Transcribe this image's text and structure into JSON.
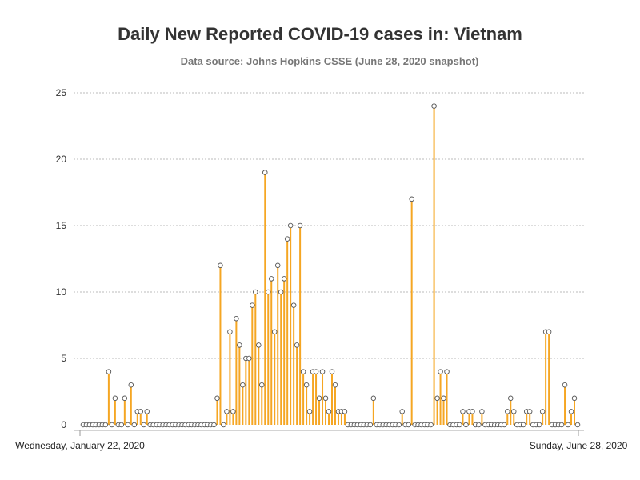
{
  "chart_data": {
    "type": "bar",
    "title": "Daily New Reported COVID-19 cases in: Vietnam",
    "subtitle": "Data source: Johns Hopkins CSSE (June 28, 2020 snapshot)",
    "xlabel": "",
    "ylabel": "",
    "x_start_label": "Wednesday, January 22, 2020",
    "x_end_label": "Sunday, June 28, 2020",
    "x_range": [
      "2020-01-22",
      "2020-06-28"
    ],
    "ylim": [
      0,
      25
    ],
    "y_ticks": [
      0,
      5,
      10,
      15,
      20,
      25
    ],
    "grid": true,
    "colors": {
      "stem": "#f5a623",
      "marker_fill": "#ffffff",
      "marker_stroke": "#555555",
      "grid": "#bbbbbb",
      "axis": "#999999"
    },
    "values": [
      0,
      0,
      0,
      0,
      0,
      0,
      0,
      0,
      4,
      0,
      2,
      0,
      0,
      2,
      0,
      3,
      0,
      1,
      1,
      0,
      1,
      0,
      0,
      0,
      0,
      0,
      0,
      0,
      0,
      0,
      0,
      0,
      0,
      0,
      0,
      0,
      0,
      0,
      0,
      0,
      0,
      0,
      2,
      12,
      0,
      1,
      7,
      1,
      8,
      6,
      3,
      5,
      5,
      9,
      10,
      6,
      3,
      19,
      10,
      11,
      7,
      12,
      10,
      11,
      14,
      15,
      9,
      6,
      15,
      4,
      3,
      1,
      4,
      4,
      2,
      4,
      2,
      1,
      4,
      3,
      1,
      1,
      1,
      0,
      0,
      0,
      0,
      0,
      0,
      0,
      0,
      2,
      0,
      0,
      0,
      0,
      0,
      0,
      0,
      0,
      1,
      0,
      0,
      17,
      0,
      0,
      0,
      0,
      0,
      0,
      24,
      2,
      4,
      2,
      4,
      0,
      0,
      0,
      0,
      1,
      0,
      1,
      1,
      0,
      0,
      1,
      0,
      0,
      0,
      0,
      0,
      0,
      0,
      1,
      2,
      1,
      0,
      0,
      0,
      1,
      1,
      0,
      0,
      0,
      1,
      7,
      7,
      0,
      0,
      0,
      0,
      3,
      0,
      1,
      2,
      0
    ]
  }
}
